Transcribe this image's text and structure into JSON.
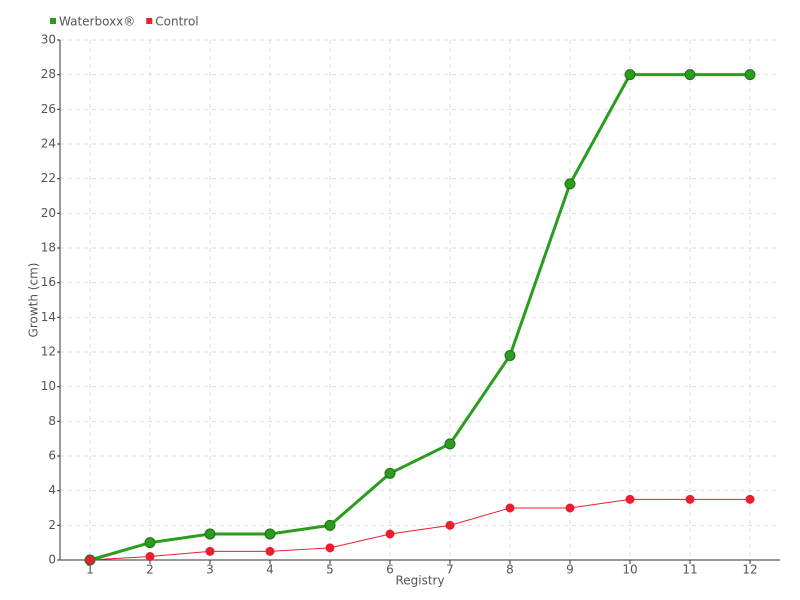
{
  "chart_data": {
    "type": "line",
    "x_label": "Registry",
    "y_label": "Growth (cm)",
    "categories": [
      "1",
      "2",
      "3",
      "4",
      "5",
      "6",
      "7",
      "8",
      "9",
      "10",
      "11",
      "12"
    ],
    "series": [
      {
        "name": "Waterboxx®",
        "color": "#2a9d1e",
        "values": [
          0,
          1,
          1.5,
          1.5,
          2,
          5,
          6.7,
          11.8,
          21.7,
          28,
          28,
          28
        ]
      },
      {
        "name": "Control",
        "color": "#e8202e",
        "values": [
          0,
          0.2,
          0.5,
          0.5,
          0.7,
          1.5,
          2,
          3,
          3,
          3.5,
          3.5,
          3.5
        ]
      }
    ],
    "ylim": [
      0,
      30
    ],
    "yticks": [
      0,
      2,
      4,
      6,
      8,
      10,
      12,
      14,
      16,
      18,
      20,
      22,
      24,
      26,
      28,
      30
    ],
    "grid": true,
    "legend": "top-left"
  }
}
